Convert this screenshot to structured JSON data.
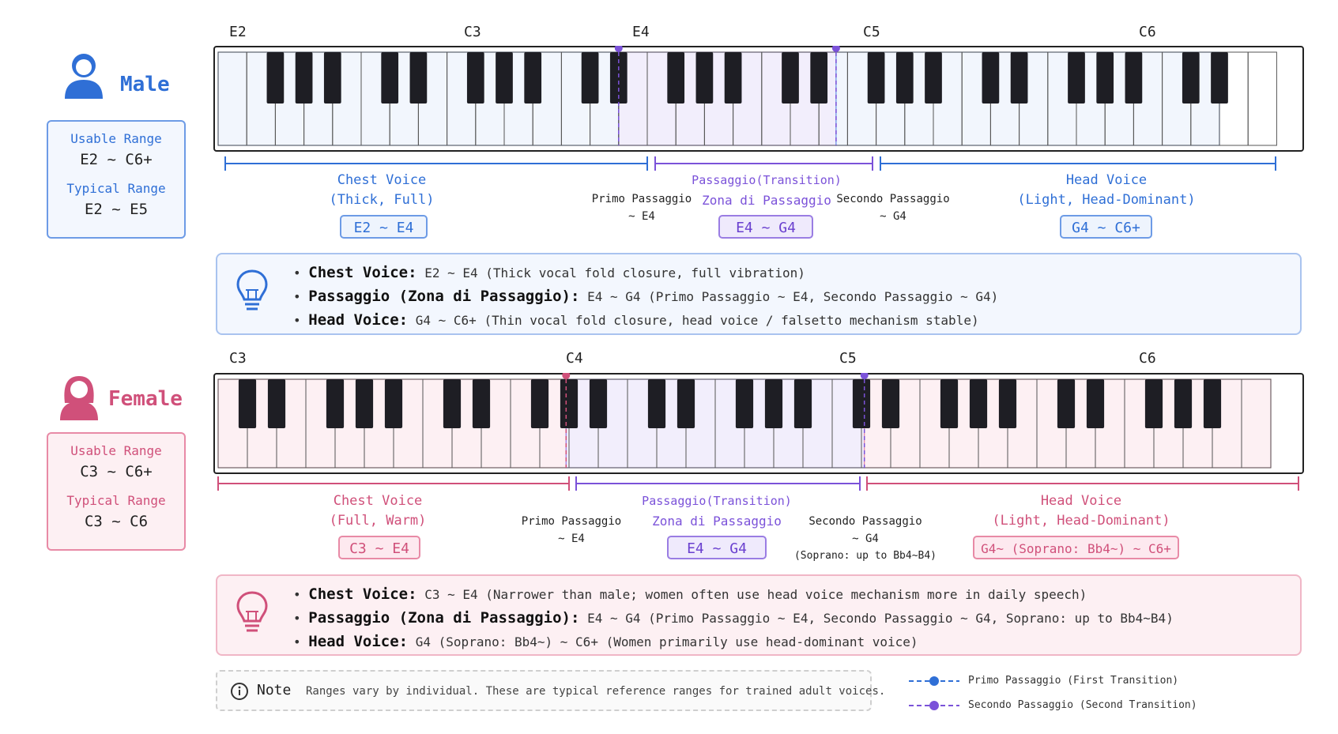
{
  "male": {
    "name": "Male",
    "usable_label": "Usable Range",
    "usable_value": "E2 ~ C6+",
    "typical_label": "Typical Range",
    "typical_value": "E2 ~ E5",
    "notes": [
      "E2",
      "C3",
      "E4",
      "C5",
      "C6"
    ],
    "chest": {
      "title": "Chest Voice",
      "sub": "(Thick, Full)",
      "range": "E2 ~ E4"
    },
    "passaggio": {
      "title": "Passaggio(Transition)",
      "sub": "Zona di Passaggio",
      "range": "E4 ~ G4"
    },
    "head": {
      "title": "Head Voice",
      "sub": "(Light, Head-Dominant)",
      "range": "G4 ~ C6+"
    },
    "primo": {
      "label": "Primo Passaggio",
      "value": "~ E4"
    },
    "secondo": {
      "label": "Secondo Passaggio",
      "value": "~ G4"
    },
    "info": [
      {
        "key": "Chest Voice:",
        "range": "E2 ~ E4",
        "desc": "(Thick vocal fold closure, full vibration)"
      },
      {
        "key": "Passaggio (Zona di Passaggio):",
        "range": "E4 ~ G4",
        "desc": "(Primo Passaggio ~ E4, Secondo Passaggio ~ G4)"
      },
      {
        "key": "Head Voice:",
        "range": "G4 ~ C6+",
        "desc": "(Thin vocal fold closure, head voice / falsetto mechanism stable)"
      }
    ]
  },
  "female": {
    "name": "Female",
    "usable_label": "Usable Range",
    "usable_value": "C3 ~ C6+",
    "typical_label": "Typical Range",
    "typical_value": "C3 ~ C6",
    "notes": [
      "C3",
      "C4",
      "C5",
      "C6"
    ],
    "chest": {
      "title": "Chest Voice",
      "sub": "(Full, Warm)",
      "range": "C3 ~ E4"
    },
    "passaggio": {
      "title": "Passaggio(Transition)",
      "sub": "Zona di Passaggio",
      "range": "E4 ~ G4"
    },
    "head": {
      "title": "Head Voice",
      "sub": "(Light, Head-Dominant)",
      "range": "G4~ (Soprano: Bb4~) ~ C6+"
    },
    "primo": {
      "label": "Primo Passaggio",
      "value": "~ E4"
    },
    "secondo": {
      "label": "Secondo Passaggio",
      "value": "~ G4",
      "extra": "(Soprano: up to Bb4~B4)"
    },
    "info": [
      {
        "key": "Chest Voice:",
        "range": "C3 ~ E4",
        "desc": "(Narrower than male; women often use head voice mechanism more in daily speech)"
      },
      {
        "key": "Passaggio (Zona di Passaggio):",
        "range": "E4 ~ G4",
        "desc": "(Primo Passaggio ~ E4, Secondo Passaggio ~ G4, Soprano: up to Bb4~B4)"
      },
      {
        "key": "Head Voice:",
        "range": "G4",
        "desc": "(Soprano: Bb4~) ~ C6+ (Women primarily use head-dominant voice)"
      }
    ]
  },
  "note": {
    "title": "Note",
    "text": "Ranges vary by individual. These are typical reference ranges for trained adult voices."
  },
  "legend": {
    "primo": "Primo Passaggio (First Transition)",
    "secondo": "Secondo Passaggio (Second Transition)"
  },
  "colors": {
    "male": "#2f6fd6",
    "female": "#d0507a",
    "passaggio": "#7b52d9",
    "male_fill": "#f2f6fd",
    "female_fill": "#fdf0f3",
    "pass_fill": "#f2eefc"
  }
}
